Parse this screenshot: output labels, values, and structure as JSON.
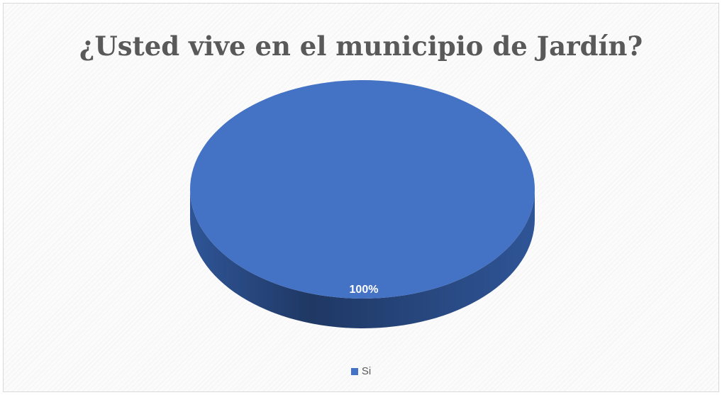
{
  "chart_data": {
    "type": "pie",
    "title": "¿Usted vive en el municipio de Jardín?",
    "categories": [
      "Si"
    ],
    "values": [
      100
    ],
    "data_labels": [
      "100%"
    ],
    "colors": [
      "#4472c4"
    ],
    "legend_position": "bottom",
    "style": "3d"
  },
  "colors": {
    "slice_top": "#4472c4",
    "slice_side_dark": "#1f3864",
    "slice_side_light": "#2f5597"
  }
}
